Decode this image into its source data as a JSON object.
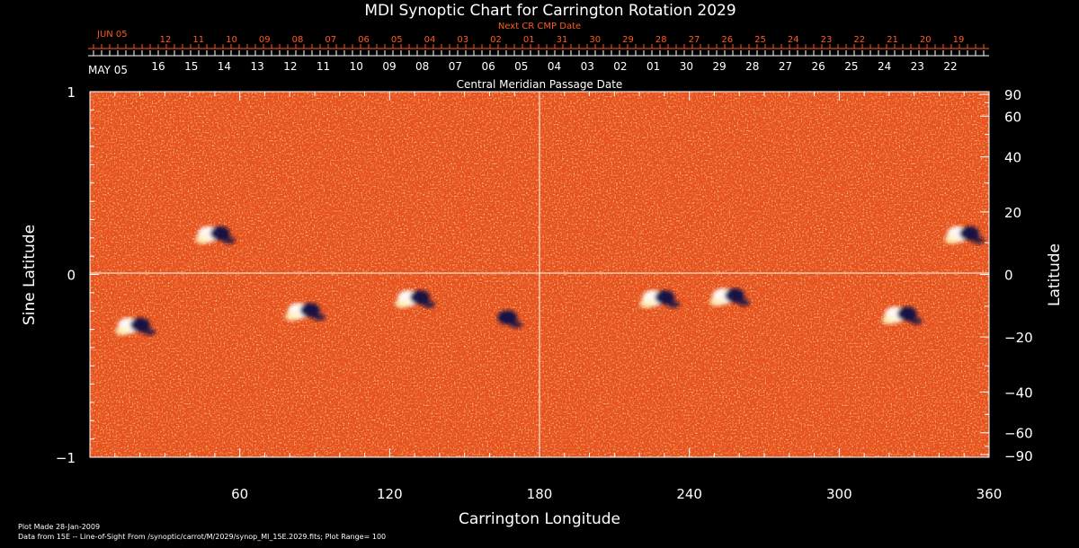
{
  "chart_data": {
    "type": "heatmap",
    "title": "MDI Synoptic Chart for Carrington Rotation 2029",
    "xlabel": "Carrington Longitude",
    "ylabel_left": "Sine Latitude",
    "ylabel_right": "Latitude",
    "xlim": [
      0,
      360
    ],
    "ylim": [
      -1,
      1
    ],
    "x_ticks": [
      60,
      120,
      180,
      240,
      300,
      360
    ],
    "y_ticks_left": [
      {
        "value": 1,
        "label": "1"
      },
      {
        "value": 0,
        "label": "0"
      },
      {
        "value": -1,
        "label": "−1"
      }
    ],
    "y_ticks_right": [
      {
        "deg": 90,
        "label": "90"
      },
      {
        "deg": 60,
        "label": "60"
      },
      {
        "deg": 40,
        "label": "40"
      },
      {
        "deg": 20,
        "label": "20"
      },
      {
        "deg": 0,
        "label": "0"
      },
      {
        "deg": -20,
        "label": "−20"
      },
      {
        "deg": -40,
        "label": "−40"
      },
      {
        "deg": -60,
        "label": "−60"
      },
      {
        "deg": -90,
        "label": "−90"
      }
    ],
    "top_axis_next": {
      "caption": "Next CR CMP Date",
      "month_label": "JUN 05",
      "labels": [
        "12",
        "11",
        "10",
        "09",
        "08",
        "07",
        "06",
        "05",
        "04",
        "03",
        "02",
        "01",
        "31",
        "30",
        "29",
        "28",
        "27",
        "26",
        "25",
        "24",
        "23",
        "22",
        "21",
        "20",
        "19"
      ]
    },
    "top_axis_cmp": {
      "caption": "Central Meridian Passage Date",
      "month_label": "MAY 05",
      "labels": [
        "16",
        "15",
        "14",
        "13",
        "12",
        "11",
        "10",
        "09",
        "08",
        "07",
        "06",
        "05",
        "04",
        "03",
        "02",
        "01",
        "30",
        "29",
        "28",
        "27",
        "26",
        "25",
        "24",
        "23",
        "22"
      ]
    },
    "active_regions": [
      {
        "lon": 50,
        "sinlat": 0.22,
        "polarity": "mixed"
      },
      {
        "lon": 18,
        "sinlat": -0.28,
        "polarity": "mixed"
      },
      {
        "lon": 86,
        "sinlat": -0.2,
        "polarity": "mixed"
      },
      {
        "lon": 130,
        "sinlat": -0.13,
        "polarity": "mixed"
      },
      {
        "lon": 165,
        "sinlat": -0.24,
        "polarity": "negative"
      },
      {
        "lon": 228,
        "sinlat": -0.13,
        "polarity": "mixed"
      },
      {
        "lon": 256,
        "sinlat": -0.12,
        "polarity": "mixed"
      },
      {
        "lon": 325,
        "sinlat": -0.22,
        "polarity": "mixed"
      },
      {
        "lon": 350,
        "sinlat": 0.22,
        "polarity": "mixed"
      }
    ],
    "colors": {
      "background": "#e8501c",
      "positive": "#ffffff",
      "negative": "#0a0a45",
      "frame": "#ffffff",
      "date_axis_next": "#ff5a1e"
    }
  },
  "footer": {
    "plot_made": "Plot Made 28-Jan-2009",
    "data_source": "Data from 15E -- Line-of-Sight From /synoptic/carrot/M/2029/synop_Ml_15E.2029.fits; Plot Range= 100"
  }
}
